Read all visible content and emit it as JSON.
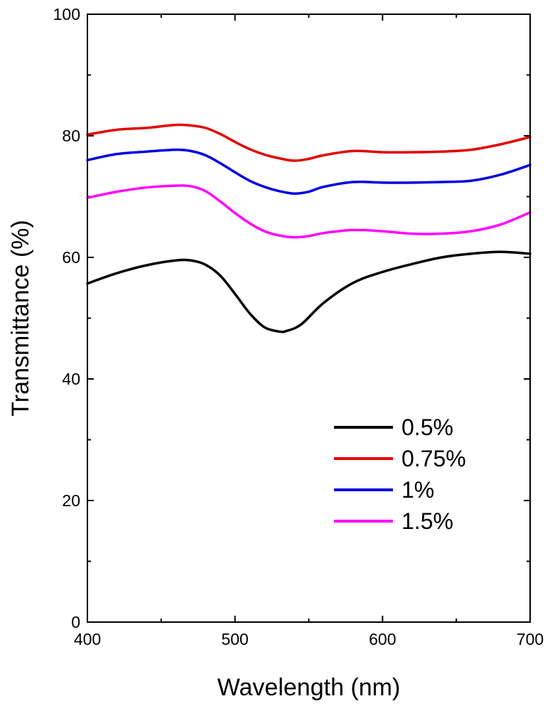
{
  "chart_data": {
    "type": "line",
    "title": "",
    "xlabel": "Wavelength (nm)",
    "ylabel": "Transmittance (%)",
    "xlim": [
      400,
      700
    ],
    "ylim": [
      0,
      100
    ],
    "xticks": [
      400,
      500,
      600,
      700
    ],
    "yticks": [
      0,
      20,
      40,
      60,
      80,
      100
    ],
    "legend_position": "lower-right",
    "series": [
      {
        "name": "0.5%",
        "color": "#000000",
        "x": [
          400,
          420,
          440,
          460,
          470,
          480,
          490,
          500,
          510,
          520,
          530,
          535,
          545,
          560,
          580,
          600,
          620,
          640,
          660,
          680,
          700
        ],
        "y": [
          55.7,
          57.4,
          58.7,
          59.5,
          59.5,
          58.8,
          57.0,
          54.0,
          50.8,
          48.5,
          47.8,
          47.9,
          49.0,
          52.5,
          55.8,
          57.6,
          58.9,
          60.0,
          60.6,
          60.9,
          60.6
        ]
      },
      {
        "name": "0.75%",
        "color": "#e00000",
        "x": [
          400,
          420,
          440,
          460,
          470,
          480,
          490,
          500,
          510,
          520,
          530,
          540,
          550,
          560,
          580,
          600,
          620,
          640,
          660,
          680,
          700
        ],
        "y": [
          80.2,
          81.0,
          81.3,
          81.8,
          81.7,
          81.3,
          80.3,
          79.0,
          77.8,
          76.9,
          76.3,
          75.9,
          76.2,
          76.8,
          77.5,
          77.3,
          77.3,
          77.4,
          77.7,
          78.6,
          79.8
        ]
      },
      {
        "name": "1%",
        "color": "#0000e0",
        "x": [
          400,
          420,
          440,
          460,
          470,
          480,
          490,
          500,
          510,
          520,
          530,
          540,
          550,
          560,
          580,
          600,
          620,
          640,
          660,
          680,
          700
        ],
        "y": [
          76.0,
          77.0,
          77.4,
          77.7,
          77.5,
          76.8,
          75.5,
          74.0,
          72.6,
          71.6,
          70.9,
          70.5,
          70.8,
          71.6,
          72.4,
          72.3,
          72.3,
          72.4,
          72.6,
          73.6,
          75.2
        ]
      },
      {
        "name": "1.5%",
        "color": "#ff00ff",
        "x": [
          400,
          420,
          440,
          460,
          470,
          480,
          490,
          500,
          510,
          520,
          530,
          540,
          550,
          560,
          580,
          600,
          620,
          640,
          660,
          680,
          700
        ],
        "y": [
          69.8,
          70.8,
          71.5,
          71.8,
          71.7,
          70.9,
          69.2,
          67.3,
          65.6,
          64.3,
          63.6,
          63.3,
          63.5,
          64.0,
          64.5,
          64.3,
          63.9,
          63.9,
          64.3,
          65.4,
          67.4
        ]
      }
    ]
  }
}
